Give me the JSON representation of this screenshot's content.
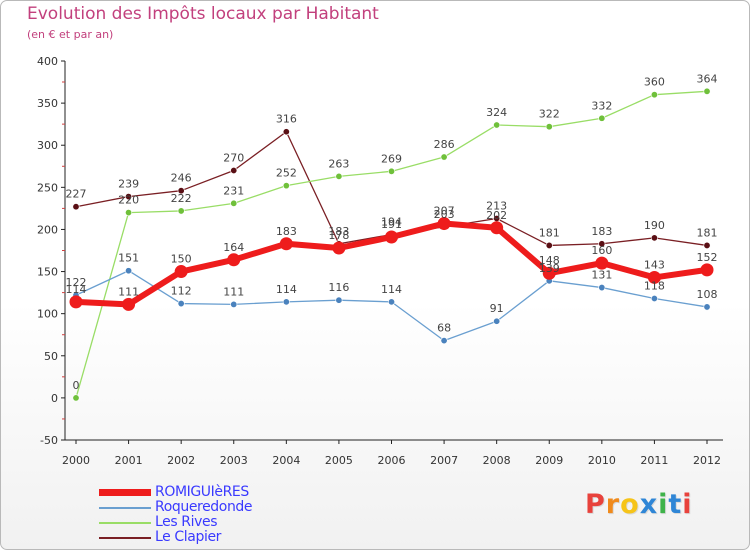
{
  "title": "Evolution des Impôts locaux par Habitant",
  "subtitle": "(en € et par an)",
  "logo": {
    "letters": [
      "P",
      "r",
      "o",
      "x",
      "i",
      "t",
      "i"
    ],
    "colors": [
      "#e8423c",
      "#f08a1c",
      "#f6c419",
      "#2f86d6",
      "#3fb34a",
      "#2f86d6",
      "#e8423c"
    ]
  },
  "chart_data": {
    "type": "line",
    "title": "Evolution des Impôts locaux par Habitant",
    "subtitle": "(en € et par an)",
    "xlabel": "",
    "ylabel": "",
    "ylim": [
      -50,
      400
    ],
    "y_ticks": [
      -50,
      0,
      50,
      100,
      150,
      200,
      250,
      300,
      350,
      400
    ],
    "y_tick_labels": [
      "-50",
      "0",
      "50",
      "100",
      "150",
      "200",
      "250",
      "300",
      "350",
      "400"
    ],
    "categories": [
      "2000",
      "2001",
      "2002",
      "2003",
      "2004",
      "2005",
      "2006",
      "2007",
      "2008",
      "2009",
      "2010",
      "2011",
      "2012"
    ],
    "grid": false,
    "legend_position": "bottom-left",
    "series": [
      {
        "name": "Le Clapier",
        "color": "#7a1f24",
        "marker": "#5a0f14",
        "values": [
          227,
          239,
          246,
          270,
          316,
          183,
          194,
          203,
          213,
          181,
          183,
          190,
          181
        ]
      },
      {
        "name": "Les Rives",
        "color": "#99dd66",
        "marker": "#6fc03a",
        "values": [
          0,
          220,
          222,
          231,
          252,
          263,
          269,
          286,
          324,
          322,
          332,
          360,
          364
        ]
      },
      {
        "name": "Roqueredonde",
        "color": "#6a9fd0",
        "marker": "#4a82bd",
        "values": [
          122,
          151,
          112,
          111,
          114,
          116,
          114,
          68,
          91,
          139,
          131,
          118,
          108
        ]
      },
      {
        "name": "ROMIGUIèRES",
        "color": "#ee1c1c",
        "marker": "#ee1c1c",
        "values": [
          114,
          111,
          150,
          164,
          183,
          178,
          191,
          207,
          202,
          148,
          160,
          143,
          152
        ]
      }
    ],
    "legend": [
      "ROMIGUIèRES",
      "Roqueredonde",
      "Les Rives",
      "Le Clapier"
    ]
  }
}
